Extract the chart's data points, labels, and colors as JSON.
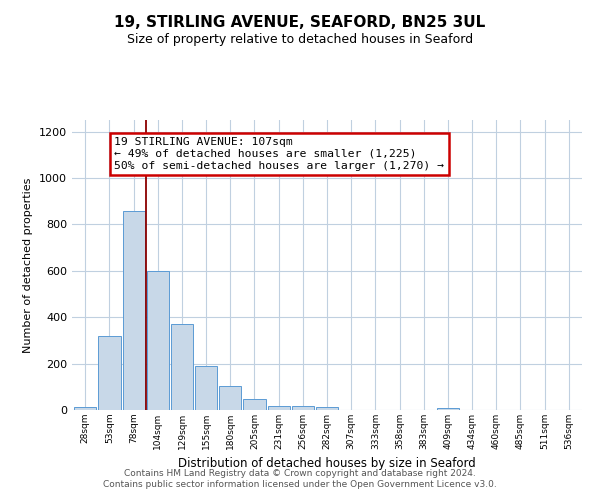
{
  "title": "19, STIRLING AVENUE, SEAFORD, BN25 3UL",
  "subtitle": "Size of property relative to detached houses in Seaford",
  "xlabel": "Distribution of detached houses by size in Seaford",
  "ylabel": "Number of detached properties",
  "bar_labels": [
    "28sqm",
    "53sqm",
    "78sqm",
    "104sqm",
    "129sqm",
    "155sqm",
    "180sqm",
    "205sqm",
    "231sqm",
    "256sqm",
    "282sqm",
    "307sqm",
    "333sqm",
    "358sqm",
    "383sqm",
    "409sqm",
    "434sqm",
    "460sqm",
    "485sqm",
    "511sqm",
    "536sqm"
  ],
  "bar_values": [
    12,
    318,
    858,
    600,
    370,
    188,
    103,
    47,
    18,
    18,
    14,
    0,
    0,
    0,
    0,
    8,
    0,
    0,
    0,
    0,
    0
  ],
  "bar_color": "#c8d8e8",
  "bar_edge_color": "#5b9bd5",
  "vline_x": 3.5,
  "vline_color": "#8b0000",
  "annotation_title": "19 STIRLING AVENUE: 107sqm",
  "annotation_line1": "← 49% of detached houses are smaller (1,225)",
  "annotation_line2": "50% of semi-detached houses are larger (1,270) →",
  "annotation_box_color": "#ffffff",
  "annotation_box_edge": "#cc0000",
  "ylim": [
    0,
    1250
  ],
  "yticks": [
    0,
    200,
    400,
    600,
    800,
    1000,
    1200
  ],
  "footer1": "Contains HM Land Registry data © Crown copyright and database right 2024.",
  "footer2": "Contains public sector information licensed under the Open Government Licence v3.0.",
  "bg_color": "#ffffff",
  "grid_color": "#c0d0e0"
}
